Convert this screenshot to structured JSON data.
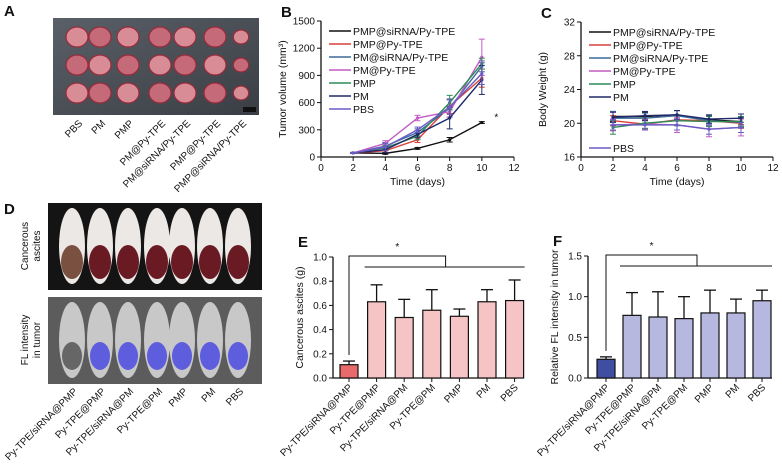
{
  "panels": {
    "A": {
      "label": "A",
      "groups": [
        "PBS",
        "PM",
        "PMP",
        "PM@Py-TPE",
        "PM@siRNA/Py-TPE",
        "PMP@Py-TPE",
        "PMP@siRNA/Py-TPE"
      ]
    },
    "D": {
      "label": "D",
      "row_labels": [
        [
          "Cancerous",
          "ascites"
        ],
        [
          "FL intensity",
          "in tumor"
        ]
      ],
      "groups": [
        "Py-TPE/siRNA@PMP",
        "Py-TPE@PMP",
        "Py-TPE/siRNA@PM",
        "Py-TPE@PM",
        "PMP",
        "PM",
        "PBS"
      ]
    }
  },
  "chart_data": [
    {
      "panel": "B",
      "type": "line",
      "xlabel": "Time (days)",
      "ylabel": "Tumor volume (mm³)",
      "xlim": [
        0,
        12
      ],
      "ylim": [
        0,
        1500
      ],
      "xticks": [
        0,
        2,
        4,
        6,
        8,
        10,
        12
      ],
      "yticks": [
        0,
        300,
        600,
        900,
        1200,
        1500
      ],
      "legend": "top-left",
      "annotation": "*",
      "x": [
        2,
        4,
        6,
        8,
        10
      ],
      "series": [
        {
          "name": "PMP@siRNA/Py-TPE",
          "color": "#111111",
          "values": [
            45,
            40,
            95,
            190,
            380
          ],
          "err": [
            5,
            10,
            10,
            25,
            10
          ]
        },
        {
          "name": "PMP@Py-TPE",
          "color": "#d9413a",
          "values": [
            45,
            70,
            190,
            560,
            870
          ],
          "err": [
            5,
            20,
            30,
            80,
            100
          ]
        },
        {
          "name": "PM@siRNA/Py-TPE",
          "color": "#3c6a9a",
          "values": [
            45,
            120,
            270,
            540,
            1000
          ],
          "err": [
            5,
            40,
            40,
            100,
            60
          ]
        },
        {
          "name": "PM@Py-TPE",
          "color": "#c45cc4",
          "values": [
            45,
            150,
            430,
            500,
            1100
          ],
          "err": [
            5,
            30,
            30,
            60,
            200
          ]
        },
        {
          "name": "PMP",
          "color": "#2e8b57",
          "values": [
            45,
            100,
            230,
            600,
            1030
          ],
          "err": [
            5,
            30,
            40,
            80,
            60
          ]
        },
        {
          "name": "PM",
          "color": "#1f2a6b",
          "values": [
            45,
            80,
            250,
            430,
            850
          ],
          "err": [
            5,
            30,
            40,
            120,
            160
          ]
        },
        {
          "name": "PBS",
          "color": "#6b5bc6",
          "values": [
            45,
            110,
            300,
            550,
            920
          ],
          "err": [
            5,
            40,
            30,
            80,
            120
          ]
        }
      ]
    },
    {
      "panel": "C",
      "type": "line",
      "xlabel": "Time (days)",
      "ylabel": "Body Weight (g)",
      "xlim": [
        0,
        12
      ],
      "ylim": [
        16,
        32
      ],
      "xticks": [
        0,
        2,
        4,
        6,
        8,
        10,
        12
      ],
      "yticks": [
        16,
        20,
        24,
        28,
        32
      ],
      "legend": "top-left",
      "x": [
        2,
        4,
        6,
        8,
        10
      ],
      "series": [
        {
          "name": "PMP@siRNA/Py-TPE",
          "color": "#111111",
          "values": [
            20.8,
            20.8,
            21.0,
            20.4,
            20.2
          ],
          "err": [
            0.6,
            0.5,
            0.5,
            0.5,
            0.4
          ]
        },
        {
          "name": "PMP@Py-TPE",
          "color": "#d9413a",
          "values": [
            20.3,
            19.9,
            20.4,
            20.3,
            20.0
          ],
          "err": [
            0.6,
            0.6,
            0.6,
            0.6,
            0.6
          ]
        },
        {
          "name": "PM@siRNA/Py-TPE",
          "color": "#3c6a9a",
          "values": [
            20.6,
            20.6,
            20.9,
            20.3,
            20.1
          ],
          "err": [
            0.8,
            0.6,
            0.6,
            0.6,
            0.6
          ]
        },
        {
          "name": "PM@Py-TPE",
          "color": "#c45cc4",
          "values": [
            19.8,
            19.9,
            19.8,
            19.3,
            19.5
          ],
          "err": [
            0.7,
            0.6,
            0.9,
            0.9,
            1.0
          ]
        },
        {
          "name": "PMP",
          "color": "#2e8b57",
          "values": [
            19.5,
            20.0,
            20.3,
            20.2,
            20.2
          ],
          "err": [
            0.8,
            0.6,
            0.6,
            0.6,
            0.6
          ]
        },
        {
          "name": "PM",
          "color": "#1f2a6b",
          "values": [
            20.7,
            20.9,
            21.0,
            20.5,
            20.6
          ],
          "err": [
            0.6,
            0.5,
            0.5,
            0.5,
            0.5
          ]
        },
        {
          "name": "PBS",
          "color": "#6b5bc6",
          "values": [
            19.8,
            19.8,
            19.8,
            19.3,
            19.5
          ],
          "err": [
            0.6,
            0.6,
            0.6,
            0.6,
            0.6
          ]
        }
      ]
    },
    {
      "panel": "E",
      "type": "bar",
      "ylabel": "Cancerous ascites (g)",
      "ylim": [
        0,
        1.0
      ],
      "yticks": [
        "0.0",
        "0.2",
        "0.4",
        "0.6",
        "0.8",
        "1.0"
      ],
      "annotation": "*",
      "categories": [
        "Py-TPE/siRNA@PMP",
        "Py-TPE@PMP",
        "Py-TPE/siRNA@PM",
        "Py-TPE@PM",
        "PMP",
        "PM",
        "PBS"
      ],
      "values": [
        0.11,
        0.63,
        0.5,
        0.56,
        0.51,
        0.63,
        0.64
      ],
      "err": [
        0.03,
        0.14,
        0.15,
        0.17,
        0.06,
        0.1,
        0.17
      ],
      "colors": [
        "#e86a6a",
        "#f6c4c4"
      ]
    },
    {
      "panel": "F",
      "type": "bar",
      "ylabel": "Relative FL intensity in tumor",
      "ylim": [
        0,
        1.5
      ],
      "yticks": [
        "0.0",
        "0.5",
        "1.0",
        "1.5"
      ],
      "annotation": "*",
      "categories": [
        "Py-TPE/siRNA@PMP",
        "Py-TPE@PMP",
        "Py-TPE/siRNA@PM",
        "Py-TPE@PM",
        "PMP",
        "PM",
        "PBS"
      ],
      "values": [
        0.23,
        0.77,
        0.75,
        0.73,
        0.8,
        0.8,
        0.95
      ],
      "err": [
        0.03,
        0.28,
        0.31,
        0.27,
        0.28,
        0.17,
        0.13
      ],
      "colors": [
        "#3f4ea0",
        "#b7b8e0"
      ]
    }
  ]
}
